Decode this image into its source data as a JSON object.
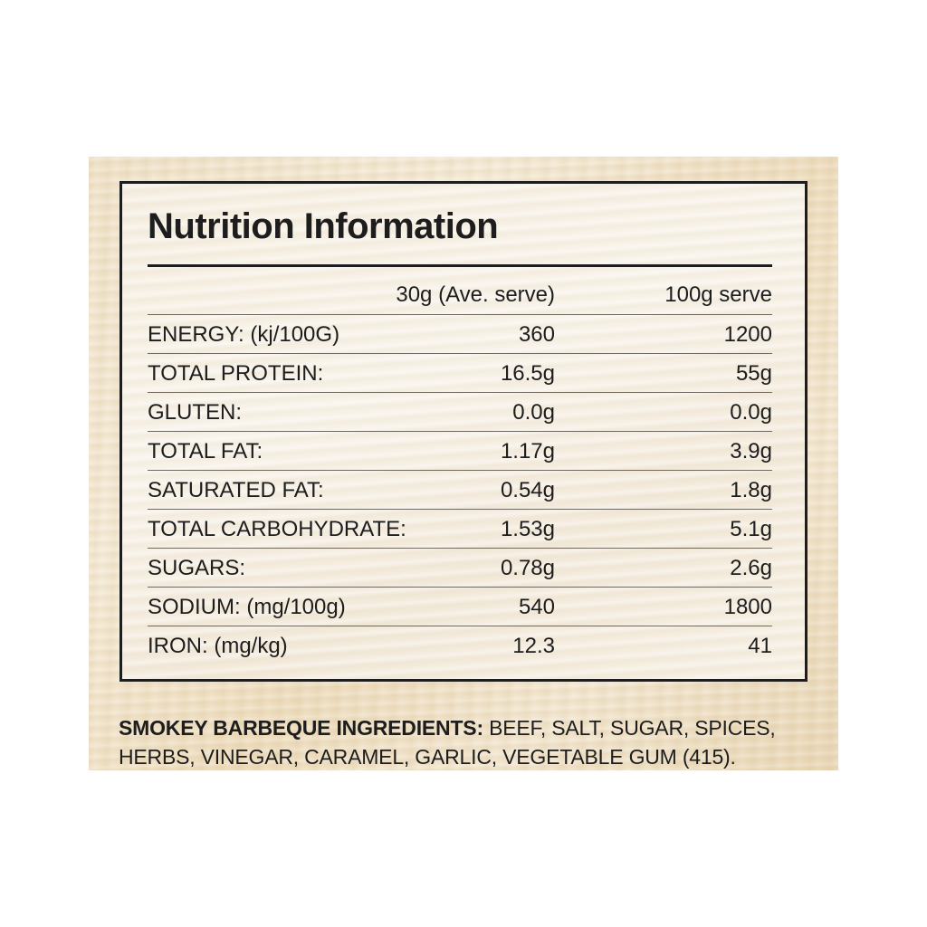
{
  "label": {
    "title": "Nutrition Information",
    "columns": {
      "serve_30g": "30g (Ave. serve)",
      "serve_100g": "100g serve"
    },
    "rows": [
      {
        "name": "ENERGY: (kj/100G)",
        "per_serve": "360",
        "per_100g": "1200"
      },
      {
        "name": "TOTAL PROTEIN:",
        "per_serve": "16.5g",
        "per_100g": "55g"
      },
      {
        "name": "GLUTEN:",
        "per_serve": "0.0g",
        "per_100g": "0.0g"
      },
      {
        "name": "TOTAL FAT:",
        "per_serve": "1.17g",
        "per_100g": "3.9g"
      },
      {
        "name": "SATURATED FAT:",
        "per_serve": "0.54g",
        "per_100g": "1.8g"
      },
      {
        "name": "TOTAL CARBOHYDRATE:",
        "per_serve": "1.53g",
        "per_100g": "5.1g"
      },
      {
        "name": "SUGARS:",
        "per_serve": "0.78g",
        "per_100g": "2.6g"
      },
      {
        "name": "SODIUM: (mg/100g)",
        "per_serve": "540",
        "per_100g": "1800"
      },
      {
        "name": "IRON: (mg/kg)",
        "per_serve": "12.3",
        "per_100g": "41"
      }
    ]
  },
  "ingredients": {
    "label": "SMOKEY BARBEQUE INGREDIENTS:",
    "text": " BEEF, SALT, SUGAR, SPICES, HERBS, VINEGAR, CARAMEL, GARLIC, VEGETABLE GUM (415)."
  }
}
